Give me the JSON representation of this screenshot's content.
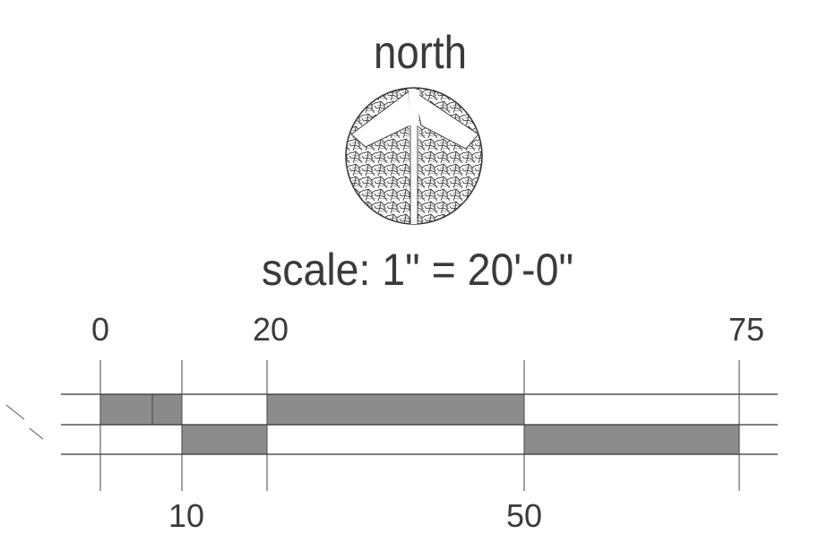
{
  "north_label": "north",
  "scale_label": "scale: 1\" = 20'-0\"",
  "scale_bar": {
    "top_labels": [
      "0",
      "20",
      "75"
    ],
    "bottom_labels": [
      "10",
      "50"
    ]
  },
  "colors": {
    "ink": "#3a3a3a",
    "bar_fill": "#8c8c8c",
    "background": "#ffffff"
  },
  "icons": [
    "north-arrow-icon"
  ]
}
